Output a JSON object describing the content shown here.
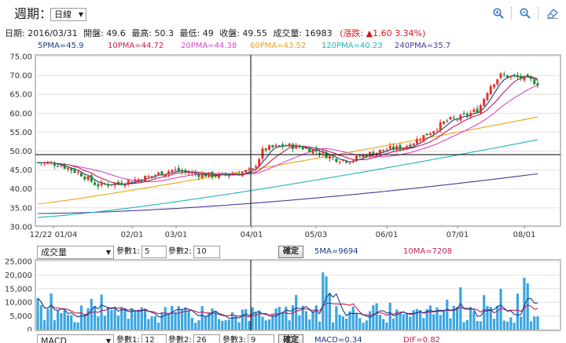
{
  "toolbar": {
    "period_label": "週期：",
    "period_value": "日線",
    "period_arrow": "▼"
  },
  "info_line": {
    "date": "日期: 2016/03/31",
    "open": "開盤: 49.6",
    "high": "最高: 50.3",
    "low": "最低: 49",
    "close": "收盤: 49.55",
    "volume": "成交量: 16983",
    "change": "(漲跌: ▲1.60 3.34%)"
  },
  "pma_legend": [
    {
      "text": "5PMA=45.9",
      "color": "#1f3a8a"
    },
    {
      "text": "10PMA=44.72",
      "color": "#c21e56"
    },
    {
      "text": "20PMA=44.38",
      "color": "#d948c8"
    },
    {
      "text": "60PMA=43.52",
      "color": "#f0a21a"
    },
    {
      "text": "120PMA=40.23",
      "color": "#20b5b5"
    },
    {
      "text": "240PMA=35.7",
      "color": "#4a3a9a"
    }
  ],
  "price_axis": [
    "75.00",
    "70.00",
    "65.00",
    "60.00",
    "55.00",
    "50.00",
    "45.00",
    "40.00",
    "35.00",
    "30.00"
  ],
  "date_axis": [
    "12/22 01/04",
    "02/01",
    "03/01",
    "04/01",
    "05/03",
    "06/01",
    "07/01",
    "08/01"
  ],
  "volume_panel": {
    "indicator": "成交量",
    "param1_label": "參數1:",
    "param1_value": "5",
    "param2_label": "參數2:",
    "param2_value": "10",
    "confirm": "確定",
    "ma5": "5MA=9694",
    "ma10": "10MA=7208",
    "axis": [
      "25,000",
      "20,000",
      "15,000",
      "10,000",
      "5,000",
      "0"
    ]
  },
  "macd_panel": {
    "indicator": "MACD",
    "param1_label": "參數1:",
    "param1_value": "12",
    "param2_label": "參數2:",
    "param2_value": "26",
    "param3_label": "參數3:",
    "param3_value": "9",
    "confirm": "確定",
    "macd": "MACD=0.34",
    "dif": "DIF=0.82"
  },
  "colors": {
    "up": "#e8322a",
    "down": "#1f8a2e",
    "volume_bar": "#3aa6e0",
    "change": "#d4161d",
    "icon": "#3a78c8"
  }
}
